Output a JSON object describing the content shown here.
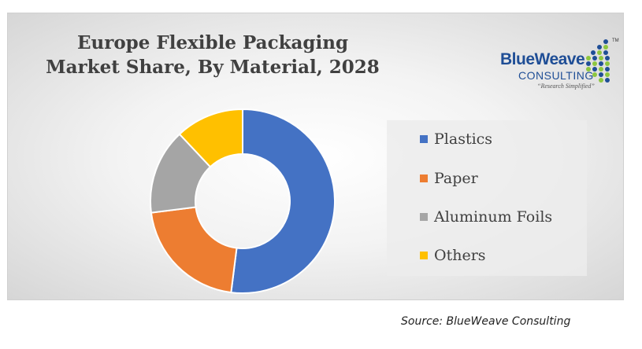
{
  "source_text": "Source: BlueWeave Consulting",
  "logo": {
    "name": "BlueWeave",
    "subtitle": "CONSULTING",
    "tagline": "“Research Simplified”",
    "tm": "TM"
  },
  "colors": {
    "plastics": "#4472c4",
    "paper": "#ed7d31",
    "aluminum_foils": "#a5a5a5",
    "others": "#ffc000",
    "logo_blue": "#1f4e96",
    "logo_green": "#8dc63f"
  },
  "chart_data": {
    "type": "pie",
    "donut": true,
    "title_lines": [
      "Europe Flexible Packaging",
      "Market Share, By Material, 2028"
    ],
    "labels": [
      "Plastics",
      "Paper",
      "Aluminum Foils",
      "Others"
    ],
    "values": [
      52,
      21,
      15,
      12
    ],
    "legend_position": "right"
  }
}
